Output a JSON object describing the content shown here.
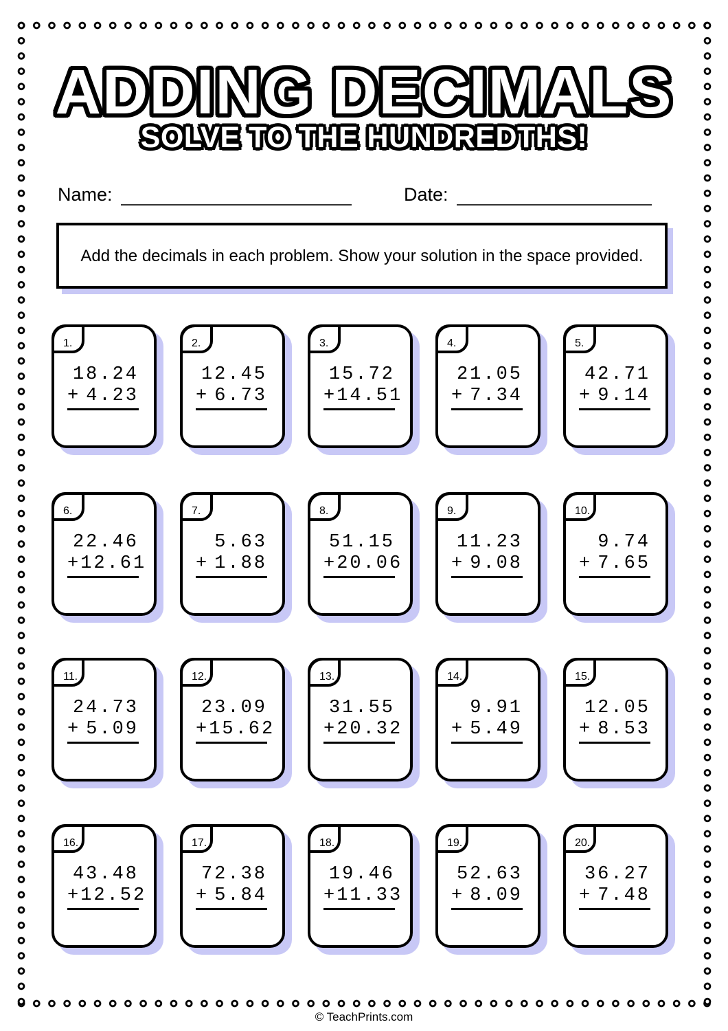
{
  "header": {
    "title": "ADDING DECIMALS",
    "subtitle": "SOLVE TO THE HUNDREDTHS!"
  },
  "fields": {
    "name_label": "Name:",
    "date_label": "Date:"
  },
  "instructions": "Add the decimals in each problem. Show your solution in the space provided.",
  "colors": {
    "shadow": "#c8c8f6",
    "ink": "#000000"
  },
  "problems": [
    {
      "num": "1.",
      "a": "18.24",
      "b": "4.23"
    },
    {
      "num": "2.",
      "a": "12.45",
      "b": "6.73"
    },
    {
      "num": "3.",
      "a": "15.72",
      "b": "14.51"
    },
    {
      "num": "4.",
      "a": "21.05",
      "b": "7.34"
    },
    {
      "num": "5.",
      "a": "42.71",
      "b": "9.14"
    },
    {
      "num": "6.",
      "a": "22.46",
      "b": "12.61"
    },
    {
      "num": "7.",
      "a": "5.63",
      "b": "1.88"
    },
    {
      "num": "8.",
      "a": "51.15",
      "b": "20.06"
    },
    {
      "num": "9.",
      "a": "11.23",
      "b": "9.08"
    },
    {
      "num": "10.",
      "a": "9.74",
      "b": "7.65"
    },
    {
      "num": "11.",
      "a": "24.73",
      "b": "5.09"
    },
    {
      "num": "12.",
      "a": "23.09",
      "b": "15.62"
    },
    {
      "num": "13.",
      "a": "31.55",
      "b": "20.32"
    },
    {
      "num": "14.",
      "a": "9.91",
      "b": "5.49"
    },
    {
      "num": "15.",
      "a": "12.05",
      "b": "8.53"
    },
    {
      "num": "16.",
      "a": "43.48",
      "b": "12.52"
    },
    {
      "num": "17.",
      "a": "72.38",
      "b": "5.84"
    },
    {
      "num": "18.",
      "a": "19.46",
      "b": "11.33"
    },
    {
      "num": "19.",
      "a": "52.63",
      "b": "8.09"
    },
    {
      "num": "20.",
      "a": "36.27",
      "b": "7.48"
    }
  ],
  "operator": "+",
  "footer": "© TeachPrints.com"
}
